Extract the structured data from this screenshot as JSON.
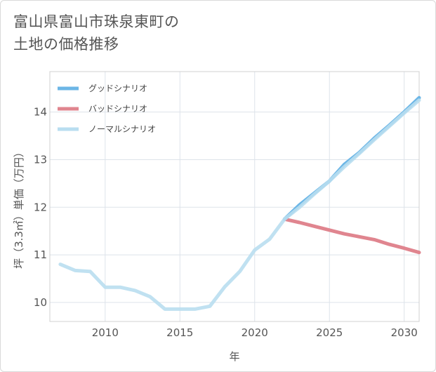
{
  "title": {
    "line1": "富山県富山市珠泉東町の",
    "line2": "土地の価格推移"
  },
  "chart_data": {
    "type": "line",
    "title": "富山県富山市珠泉東町の土地の価格推移",
    "xlabel": "年",
    "ylabel": "坪（3.3㎡）単価（万円）",
    "xlim": [
      2006.3,
      2031
    ],
    "ylim": [
      9.6,
      14.85
    ],
    "x_ticks": [
      2010,
      2015,
      2020,
      2025,
      2030
    ],
    "y_ticks": [
      10,
      11,
      12,
      13,
      14
    ],
    "grid": true,
    "legend_position": "top-left",
    "series": [
      {
        "name": "グッドシナリオ",
        "color": "#6cb6e6",
        "x": [
          2022,
          2023,
          2024,
          2025,
          2026,
          2027,
          2028,
          2029,
          2030,
          2031
        ],
        "values": [
          11.75,
          12.05,
          12.3,
          12.55,
          12.9,
          13.15,
          13.45,
          13.72,
          14.0,
          14.3
        ]
      },
      {
        "name": "バッドシナリオ",
        "color": "#e0858f",
        "x": [
          2022,
          2023,
          2024,
          2025,
          2026,
          2027,
          2028,
          2029,
          2030,
          2031
        ],
        "values": [
          11.75,
          11.68,
          11.6,
          11.52,
          11.44,
          11.38,
          11.32,
          11.22,
          11.14,
          11.05
        ]
      },
      {
        "name": "ノーマルシナリオ",
        "color": "#b9def0",
        "x": [
          2007,
          2008,
          2009,
          2010,
          2011,
          2012,
          2013,
          2014,
          2015,
          2016,
          2017,
          2018,
          2019,
          2020,
          2021,
          2022,
          2023,
          2024,
          2025,
          2026,
          2027,
          2028,
          2029,
          2030,
          2031
        ],
        "values": [
          10.8,
          10.67,
          10.65,
          10.32,
          10.32,
          10.25,
          10.12,
          9.86,
          9.86,
          9.86,
          9.92,
          10.33,
          10.65,
          11.1,
          11.33,
          11.75,
          12.0,
          12.28,
          12.55,
          12.85,
          13.13,
          13.42,
          13.7,
          13.98,
          14.25
        ]
      }
    ]
  }
}
